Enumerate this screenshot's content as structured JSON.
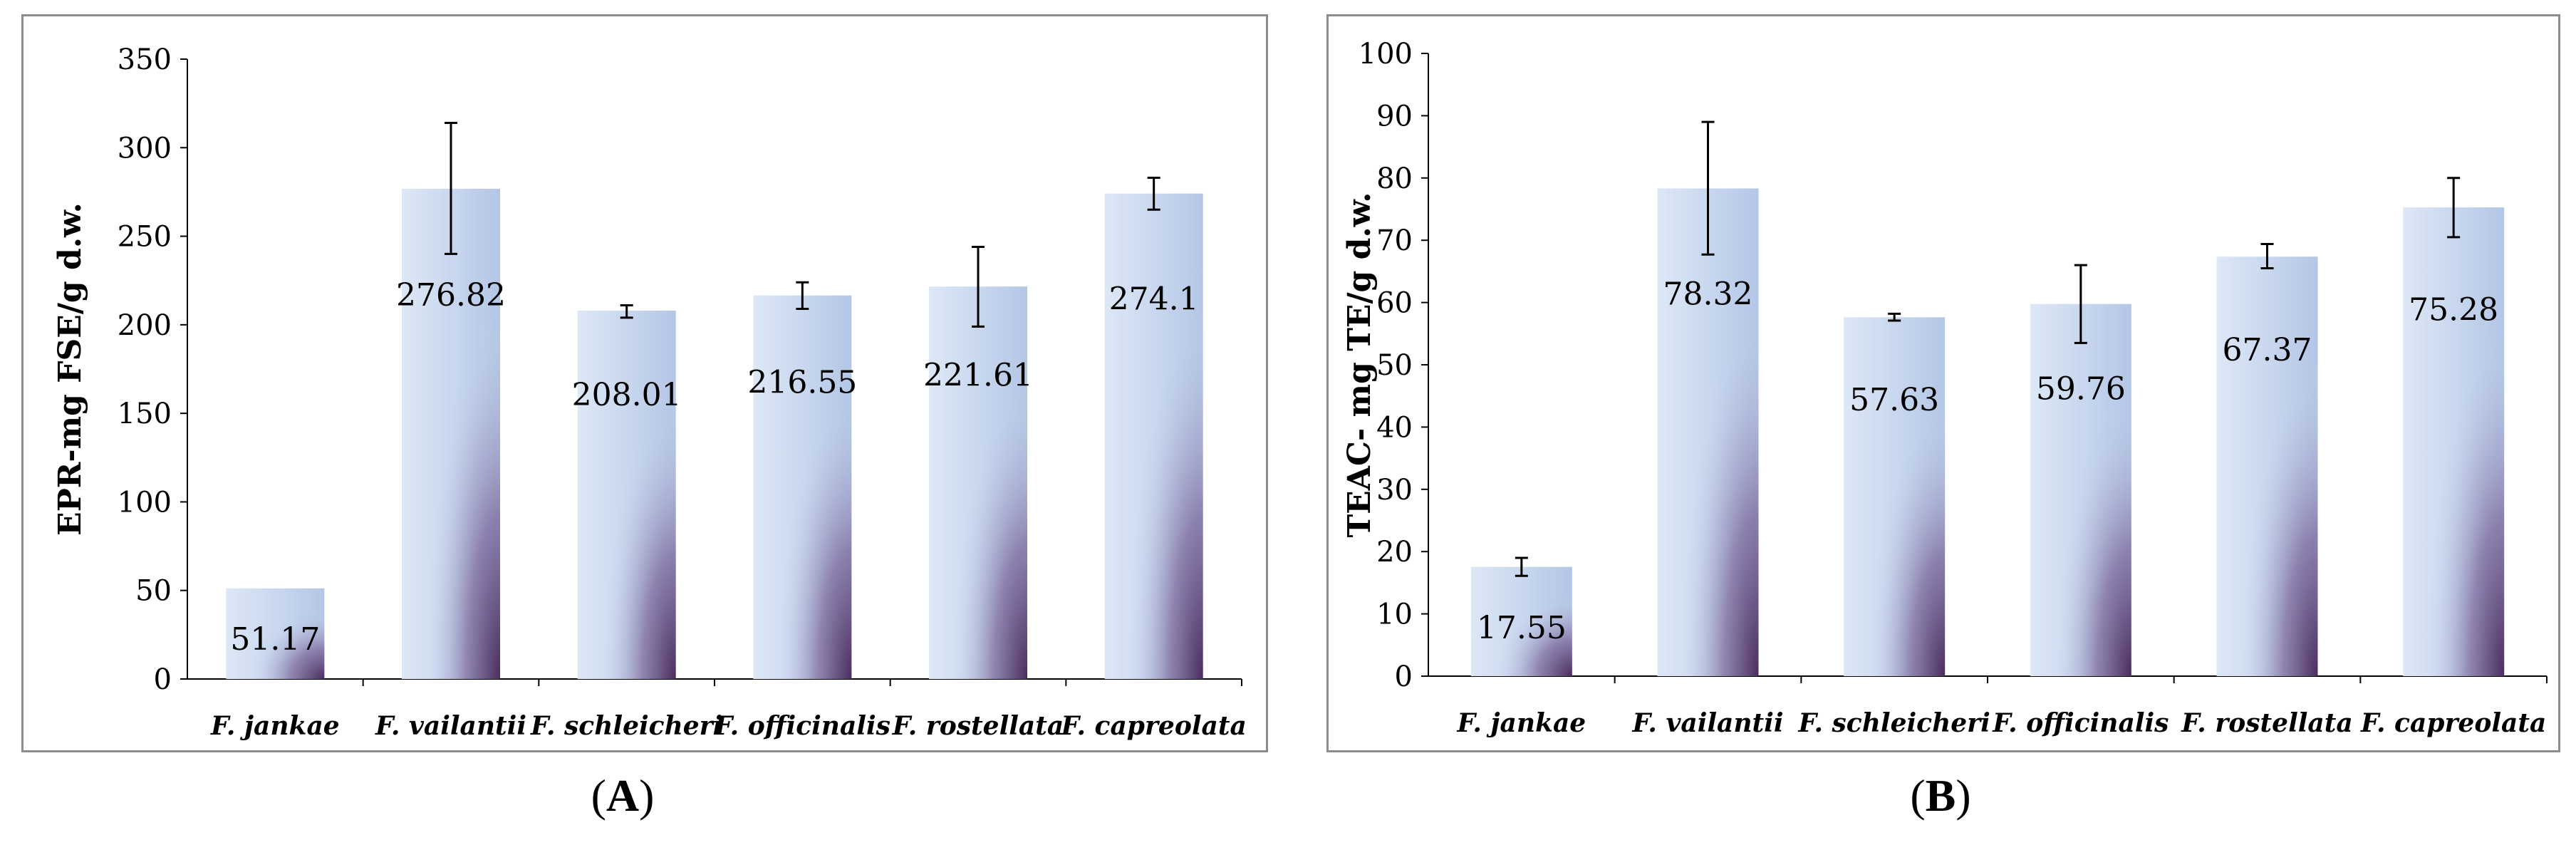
{
  "chart_data": [
    {
      "type": "bar",
      "panel": "A",
      "categories": [
        "F. jankae",
        "F. vailantii",
        "F. schleicheri",
        "F. officinalis",
        "F. rostellata",
        "F. capreolata"
      ],
      "values": [
        51.17,
        276.82,
        208.01,
        216.55,
        221.61,
        274.1
      ],
      "value_labels": [
        "51.17",
        "276.82",
        "208.01",
        "216.55",
        "221.61",
        "274.1"
      ],
      "error_high": [
        null,
        314,
        211,
        224,
        244,
        283
      ],
      "error_low": [
        null,
        240,
        204,
        209,
        199,
        265
      ],
      "ylabel": "EPR-mg FSE/g d.w.",
      "ylim": [
        0,
        350
      ],
      "yticks": [
        0,
        50,
        100,
        150,
        200,
        250,
        300,
        350
      ],
      "grid": false,
      "legend": "none"
    },
    {
      "type": "bar",
      "panel": "B",
      "categories": [
        "F. jankae",
        "F. vailantii",
        "F. schleicheri",
        "F. officinalis",
        "F. rostellata",
        "F. capreolata"
      ],
      "values": [
        17.55,
        78.32,
        57.63,
        59.76,
        67.37,
        75.28
      ],
      "value_labels": [
        "17.55",
        "78.32",
        "57.63",
        "59.76",
        "67.37",
        "75.28"
      ],
      "error_high": [
        19,
        89,
        58.2,
        66,
        69.4,
        80
      ],
      "error_low": [
        16.1,
        67.7,
        57.1,
        53.5,
        65.5,
        70.5
      ],
      "ylabel": "TEAC- mg TE/g d.w.",
      "ylim": [
        0,
        100
      ],
      "yticks": [
        0,
        10,
        20,
        30,
        40,
        50,
        60,
        70,
        80,
        90,
        100
      ],
      "grid": false,
      "legend": "none"
    }
  ],
  "panel_labels": {
    "a": "A",
    "b": "B"
  }
}
